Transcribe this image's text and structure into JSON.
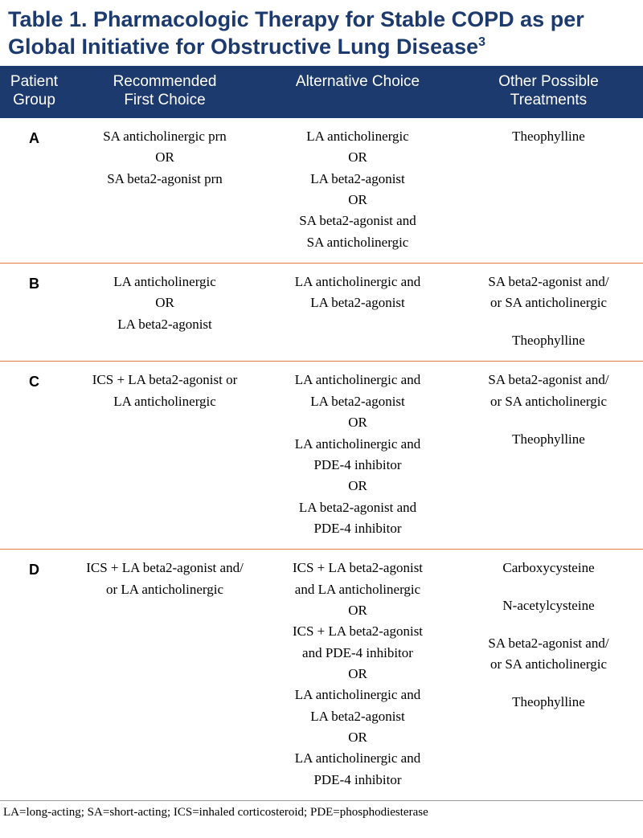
{
  "title_main": "Table 1. Pharmacologic Therapy for Stable COPD as per Global Initiative for Obstructive Lung Disease",
  "title_sup": "3",
  "columns": {
    "group_l1": "Patient",
    "group_l2": "Group",
    "first_l1": "Recommended",
    "first_l2": "First Choice",
    "alt": "Alternative Choice",
    "other_l1": "Other Possible",
    "other_l2": "Treatments"
  },
  "rows": {
    "A": {
      "label": "A",
      "first": [
        "SA anticholinergic prn",
        "OR",
        "SA beta2-agonist prn"
      ],
      "alt": [
        "LA anticholinergic",
        "OR",
        "LA beta2-agonist",
        "OR",
        "SA beta2-agonist and",
        "SA anticholinergic"
      ],
      "other": [
        "Theophylline"
      ]
    },
    "B": {
      "label": "B",
      "first": [
        "LA anticholinergic",
        "OR",
        "LA beta2-agonist"
      ],
      "alt": [
        "LA anticholinergic and",
        "LA beta2-agonist"
      ],
      "other": [
        "SA beta2-agonist and/",
        "or SA anticholinergic",
        "",
        "Theophylline"
      ]
    },
    "C": {
      "label": "C",
      "first": [
        "ICS + LA beta2-agonist or",
        "LA anticholinergic"
      ],
      "alt": [
        "LA anticholinergic and",
        "LA beta2-agonist",
        "OR",
        "LA anticholinergic and",
        "PDE-4 inhibitor",
        "OR",
        "LA beta2-agonist and",
        "PDE-4 inhibitor"
      ],
      "other": [
        "SA beta2-agonist and/",
        "or SA anticholinergic",
        "",
        "Theophylline"
      ]
    },
    "D": {
      "label": "D",
      "first": [
        "ICS + LA beta2-agonist and/",
        "or LA anticholinergic"
      ],
      "alt": [
        "ICS + LA beta2-agonist",
        "and LA anticholinergic",
        "OR",
        "ICS + LA beta2-agonist",
        "and PDE-4 inhibitor",
        "OR",
        "LA anticholinergic and",
        "LA beta2-agonist",
        "OR",
        "LA anticholinergic and",
        "PDE-4 inhibitor"
      ],
      "other": [
        "Carboxycysteine",
        "",
        "N-acetylcysteine",
        "",
        "SA beta2-agonist and/",
        "or SA anticholinergic",
        "",
        "Theophylline"
      ]
    }
  },
  "footnote": "LA=long-acting; SA=short-acting; ICS=inhaled corticosteroid; PDE=phosphodiesterase",
  "colors": {
    "header_bg": "#1d3a6e",
    "header_text": "#ffffff",
    "row_divider": "#e07a3f",
    "body_text": "#000000",
    "title_text": "#1d3a6e"
  }
}
